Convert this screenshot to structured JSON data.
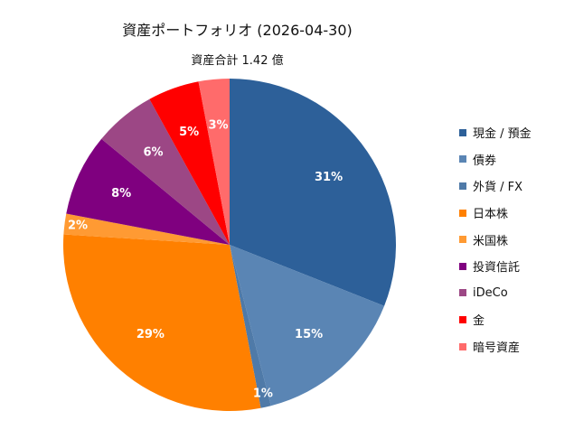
{
  "chart_data": {
    "type": "pie",
    "title": "資産ポートフォリオ (2026-04-30)",
    "subtitle": "資産合計 1.42 億",
    "legend_position": "right",
    "start_angle": "12 o'clock, clockwise",
    "slices": [
      {
        "name": "現金 / 預金",
        "value": 31,
        "label": "31%",
        "color": "#2D6099"
      },
      {
        "name": "債券",
        "value": 15,
        "label": "15%",
        "color": "#5A85B4"
      },
      {
        "name": "外貨 / FX",
        "value": 1,
        "label": "1%",
        "color": "#4F7AA8"
      },
      {
        "name": "日本株",
        "value": 29,
        "label": "29%",
        "color": "#FF8000"
      },
      {
        "name": "米国株",
        "value": 2,
        "label": "2%",
        "color": "#FF9A33"
      },
      {
        "name": "投資信託",
        "value": 8,
        "label": "8%",
        "color": "#7F007F"
      },
      {
        "name": "iDeCo",
        "value": 6,
        "label": "6%",
        "color": "#9C4785"
      },
      {
        "name": "金",
        "value": 5,
        "label": "5%",
        "color": "#FF0000"
      },
      {
        "name": "暗号資産",
        "value": 3,
        "label": "3%",
        "color": "#FF6B6B"
      }
    ]
  }
}
